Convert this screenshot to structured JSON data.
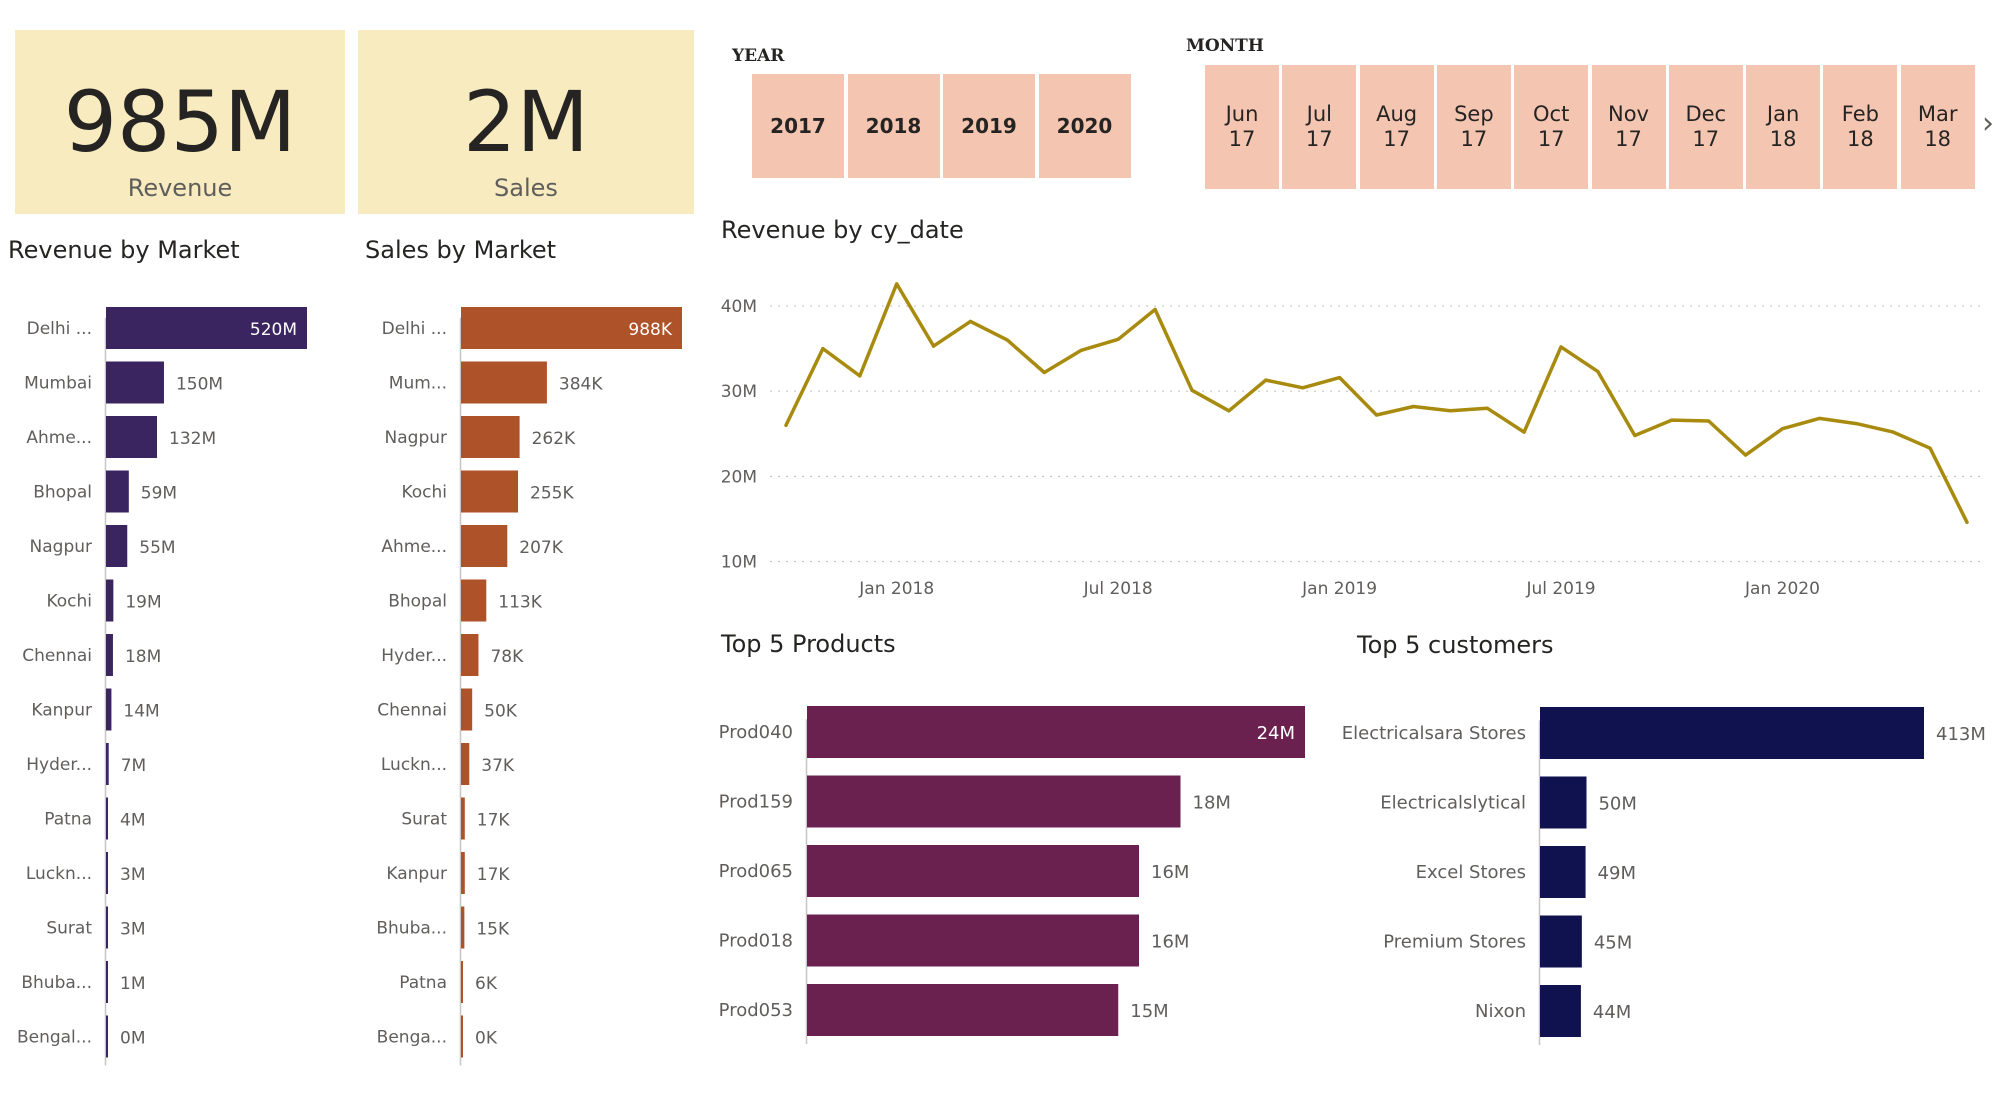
{
  "kpis": [
    {
      "value": "985M",
      "label": "Revenue"
    },
    {
      "value": "2M",
      "label": "Sales"
    }
  ],
  "year_slicer": {
    "label": "YEAR",
    "items": [
      "2017",
      "2018",
      "2019",
      "2020"
    ]
  },
  "month_slicer": {
    "label": "MONTH",
    "items": [
      [
        "Jun",
        "17"
      ],
      [
        "Jul",
        "17"
      ],
      [
        "Aug",
        "17"
      ],
      [
        "Sep",
        "17"
      ],
      [
        "Oct",
        "17"
      ],
      [
        "Nov",
        "17"
      ],
      [
        "Dec",
        "17"
      ],
      [
        "Jan",
        "18"
      ],
      [
        "Feb",
        "18"
      ],
      [
        "Mar",
        "18"
      ]
    ]
  },
  "colors": {
    "revenue_bar": "#3b2560",
    "sales_bar": "#ad5229",
    "line": "#a88b0e",
    "product_bar": "#6b2150",
    "customer_bar": "#0f124f",
    "card_bg": "#f7ebbf",
    "tile_bg": "#f4c5b0"
  },
  "chart_data": [
    {
      "id": "revenue-by-market",
      "type": "bar",
      "orientation": "horizontal",
      "title": "Revenue by Market",
      "categories": [
        "Delhi ...",
        "Mumbai",
        "Ahme...",
        "Bhopal",
        "Nagpur",
        "Kochi",
        "Chennai",
        "Kanpur",
        "Hyder...",
        "Patna",
        "Luckn...",
        "Surat",
        "Bhuba...",
        "Bengal..."
      ],
      "values": [
        520,
        150,
        132,
        59,
        55,
        19,
        18,
        14,
        7,
        4,
        3,
        3,
        1,
        0
      ],
      "labels": [
        "520M",
        "150M",
        "132M",
        "59M",
        "55M",
        "19M",
        "18M",
        "14M",
        "7M",
        "4M",
        "3M",
        "3M",
        "1M",
        "0M"
      ],
      "unit": "M"
    },
    {
      "id": "sales-by-market",
      "type": "bar",
      "orientation": "horizontal",
      "title": "Sales by Market",
      "categories": [
        "Delhi ...",
        "Mum...",
        "Nagpur",
        "Kochi",
        "Ahme...",
        "Bhopal",
        "Hyder...",
        "Chennai",
        "Luckn...",
        "Surat",
        "Kanpur",
        "Bhuba...",
        "Patna",
        "Benga..."
      ],
      "values": [
        988,
        384,
        262,
        255,
        207,
        113,
        78,
        50,
        37,
        17,
        17,
        15,
        6,
        0
      ],
      "labels": [
        "988K",
        "384K",
        "262K",
        "255K",
        "207K",
        "113K",
        "78K",
        "50K",
        "37K",
        "17K",
        "17K",
        "15K",
        "6K",
        "0K"
      ],
      "unit": "K"
    },
    {
      "id": "revenue-by-cy-date",
      "type": "line",
      "title": "Revenue by cy_date",
      "x": [
        "2017-10",
        "2017-11",
        "2017-12",
        "2018-01",
        "2018-02",
        "2018-03",
        "2018-04",
        "2018-05",
        "2018-06",
        "2018-07",
        "2018-08",
        "2018-09",
        "2018-10",
        "2018-11",
        "2018-12",
        "2019-01",
        "2019-02",
        "2019-03",
        "2019-04",
        "2019-05",
        "2019-06",
        "2019-07",
        "2019-08",
        "2019-09",
        "2019-10",
        "2019-11",
        "2019-12",
        "2020-01",
        "2020-02",
        "2020-03",
        "2020-04",
        "2020-05",
        "2020-06"
      ],
      "values": [
        26,
        35,
        31.8,
        42.6,
        35.3,
        38.2,
        36,
        32.2,
        34.8,
        36.1,
        39.6,
        30.1,
        27.7,
        31.3,
        30.4,
        31.6,
        27.2,
        28.2,
        27.7,
        28,
        25.2,
        35.2,
        32.3,
        24.8,
        26.6,
        26.5,
        22.5,
        25.6,
        26.8,
        26.2,
        25.2,
        23.3,
        14.6
      ],
      "yticks": [
        10,
        20,
        30,
        40
      ],
      "ytick_labels": [
        "10M",
        "20M",
        "30M",
        "40M"
      ],
      "xtick_labels": [
        {
          "x": "2018-01",
          "label": "Jan 2018"
        },
        {
          "x": "2018-07",
          "label": "Jul 2018"
        },
        {
          "x": "2019-01",
          "label": "Jan 2019"
        },
        {
          "x": "2019-07",
          "label": "Jul 2019"
        },
        {
          "x": "2020-01",
          "label": "Jan 2020"
        }
      ],
      "ylim": [
        9,
        44
      ],
      "grid": true
    },
    {
      "id": "top-5-products",
      "type": "bar",
      "orientation": "horizontal",
      "title": "Top 5 Products",
      "categories": [
        "Prod040",
        "Prod159",
        "Prod065",
        "Prod018",
        "Prod053"
      ],
      "values": [
        24,
        18,
        16,
        16,
        15
      ],
      "labels": [
        "24M",
        "18M",
        "16M",
        "16M",
        "15M"
      ],
      "unit": "M"
    },
    {
      "id": "top-5-customers",
      "type": "bar",
      "orientation": "horizontal",
      "title": "Top 5 customers",
      "categories": [
        "Electricalsara Stores",
        "Electricalslytical",
        "Excel Stores",
        "Premium Stores",
        "Nixon"
      ],
      "values": [
        413,
        50,
        49,
        45,
        44
      ],
      "labels": [
        "413M",
        "50M",
        "49M",
        "45M",
        "44M"
      ],
      "unit": "M"
    }
  ]
}
